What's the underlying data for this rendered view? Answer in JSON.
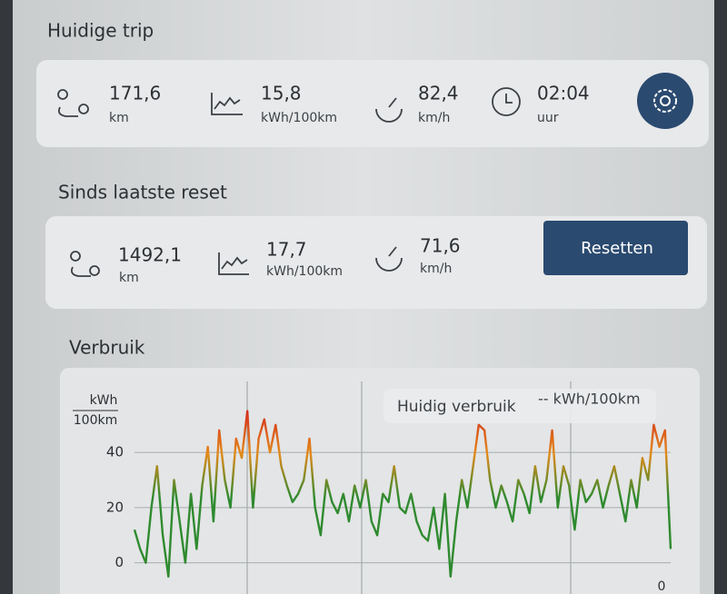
{
  "trip": {
    "title": "Huidige trip",
    "stats": [
      {
        "value": "171,6",
        "unit": "km"
      },
      {
        "value": "15,8",
        "unit": "kWh/100km"
      },
      {
        "value": "82,4",
        "unit": "km/h"
      },
      {
        "value": "02:04",
        "unit": "uur"
      }
    ]
  },
  "reset": {
    "title": "Sinds laatste reset",
    "stats": [
      {
        "value": "1492,1",
        "unit": "km"
      },
      {
        "value": "17,7",
        "unit": "kWh/100km"
      },
      {
        "value": "71,6",
        "unit": "km/h"
      }
    ],
    "button": "Resetten"
  },
  "chart": {
    "type": "line",
    "title": "Verbruik",
    "y_label_top": "kWh",
    "y_label_bottom": "100km",
    "legend_label": "Huidig verbruik",
    "legend_value": "-- kWh/100km",
    "x_end_label": "0",
    "colors": [
      "#d42a1e",
      "#e38a1b",
      "#2f8a2f"
    ],
    "values": [
      12,
      5,
      0,
      20,
      35,
      10,
      -5,
      30,
      15,
      0,
      25,
      5,
      28,
      42,
      15,
      48,
      30,
      20,
      45,
      38,
      55,
      20,
      45,
      52,
      40,
      50,
      35,
      28,
      22,
      25,
      30,
      45,
      20,
      10,
      30,
      22,
      18,
      25,
      15,
      28,
      20,
      30,
      15,
      10,
      25,
      22,
      35,
      20,
      18,
      25,
      15,
      10,
      8,
      20,
      5,
      25,
      -5,
      15,
      30,
      20,
      35,
      50,
      48,
      30,
      20,
      28,
      22,
      15,
      30,
      25,
      18,
      35,
      22,
      30,
      48,
      20,
      35,
      28,
      12,
      30,
      22,
      25,
      30,
      20,
      28,
      35,
      25,
      15,
      30,
      20,
      38,
      30,
      50,
      42,
      48,
      5
    ],
    "ylim": [
      -10,
      70
    ],
    "yticks": [
      0,
      20,
      40
    ],
    "grid": true
  }
}
